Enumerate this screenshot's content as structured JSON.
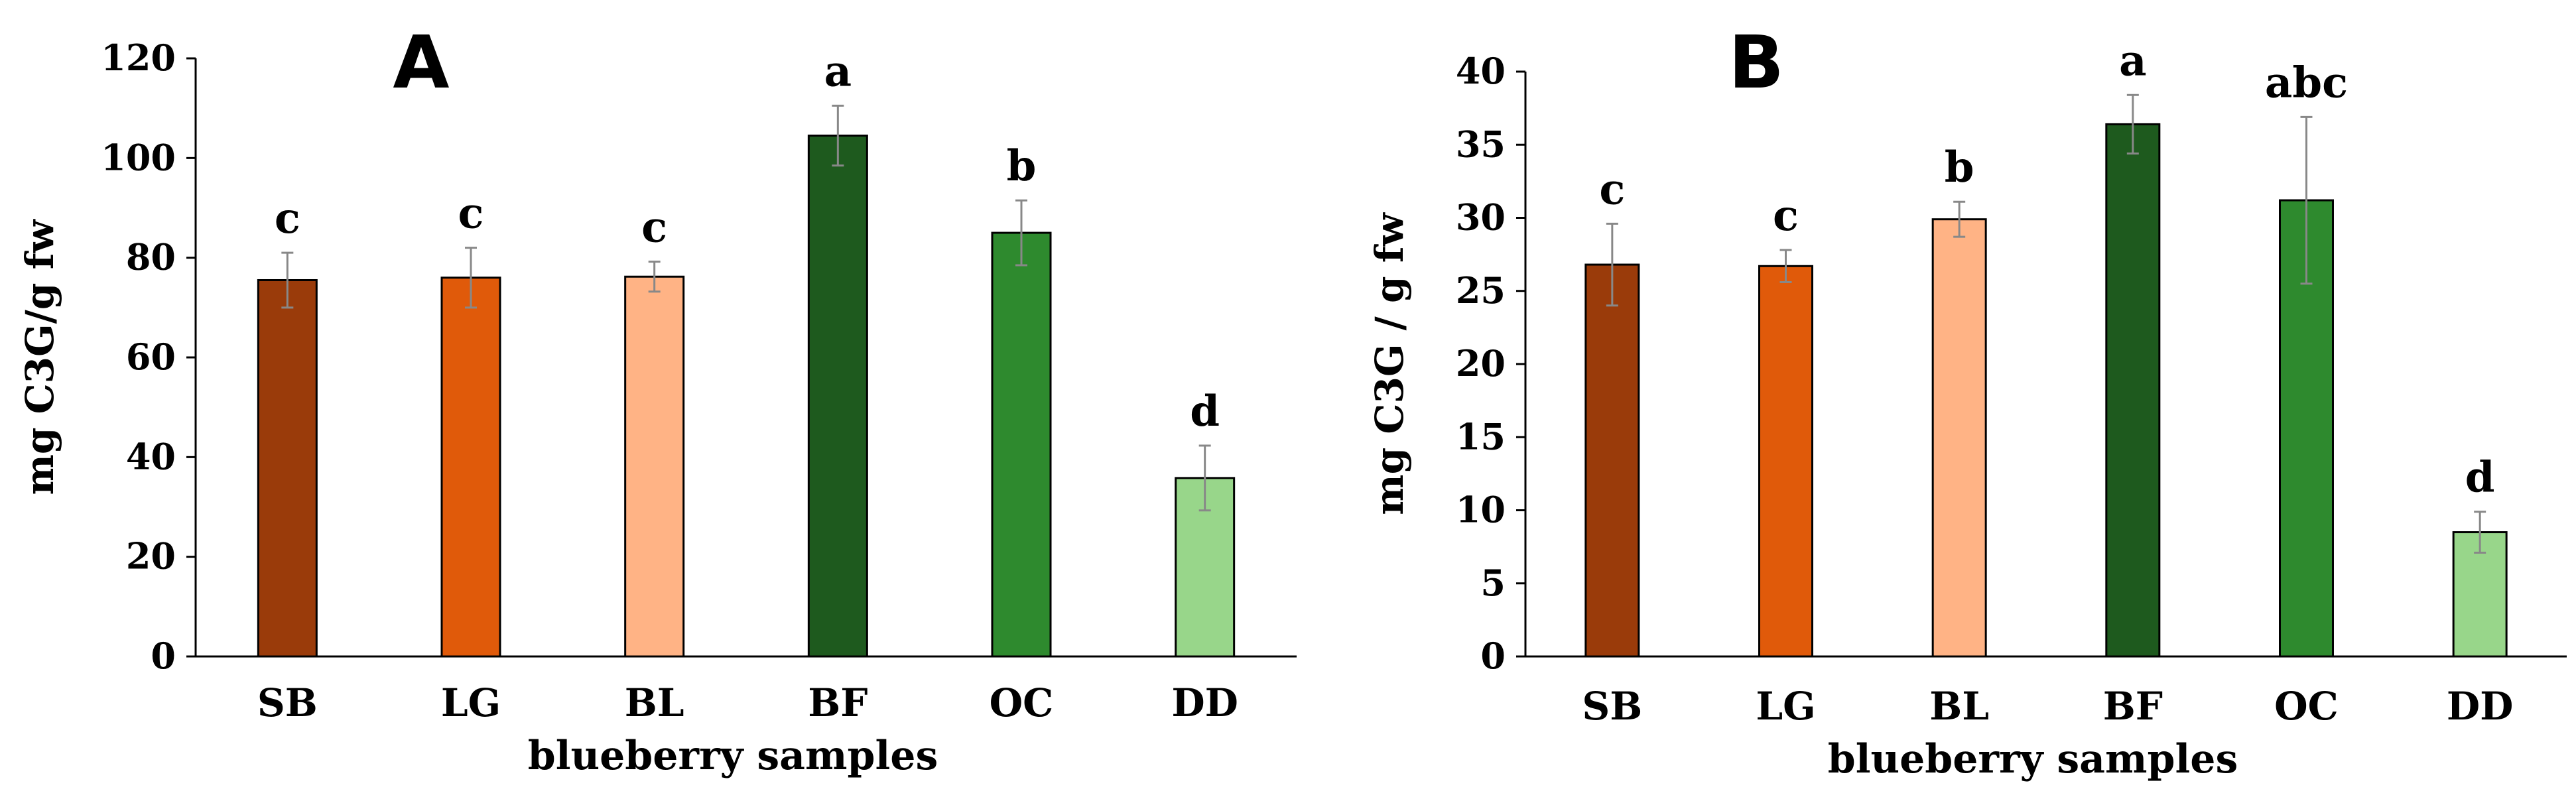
{
  "chart_data": [
    {
      "type": "bar",
      "panel_label": "A",
      "title": "",
      "xlabel": "blueberry samples",
      "ylabel": "mg C3G/g fw",
      "categories": [
        "SB",
        "LG",
        "BL",
        "BF",
        "OC",
        "DD"
      ],
      "values": [
        75.5,
        76,
        76.2,
        104.5,
        85,
        35.8
      ],
      "errors": [
        5.5,
        6,
        3,
        6,
        6.5,
        6.5
      ],
      "letters": [
        "c",
        "c",
        "c",
        "a",
        "b",
        "d"
      ],
      "colors": [
        "#9A3B0A",
        "#E05A0A",
        "#FFB385",
        "#1E5A1E",
        "#2E8A2E",
        "#98D68A"
      ],
      "ylim": [
        0,
        120
      ],
      "yticks": [
        0,
        20,
        40,
        60,
        80,
        100,
        120
      ],
      "grid": false,
      "legend": "none"
    },
    {
      "type": "bar",
      "panel_label": "B",
      "title": "",
      "xlabel": "blueberry samples",
      "ylabel": "mg C3G / g fw",
      "categories": [
        "SB",
        "LG",
        "BL",
        "BF",
        "OC",
        "DD"
      ],
      "values": [
        26.8,
        26.7,
        29.9,
        36.4,
        31.2,
        8.5
      ],
      "errors": [
        2.8,
        1.1,
        1.2,
        2.0,
        5.7,
        1.4
      ],
      "letters": [
        "c",
        "c",
        "b",
        "a",
        "abc",
        "d"
      ],
      "colors": [
        "#9A3B0A",
        "#E05A0A",
        "#FFB385",
        "#1E5A1E",
        "#2E8A2E",
        "#98D68A"
      ],
      "ylim": [
        0,
        40
      ],
      "yticks": [
        0,
        5,
        10,
        15,
        20,
        25,
        30,
        35,
        40
      ],
      "grid": false,
      "legend": "none"
    }
  ]
}
